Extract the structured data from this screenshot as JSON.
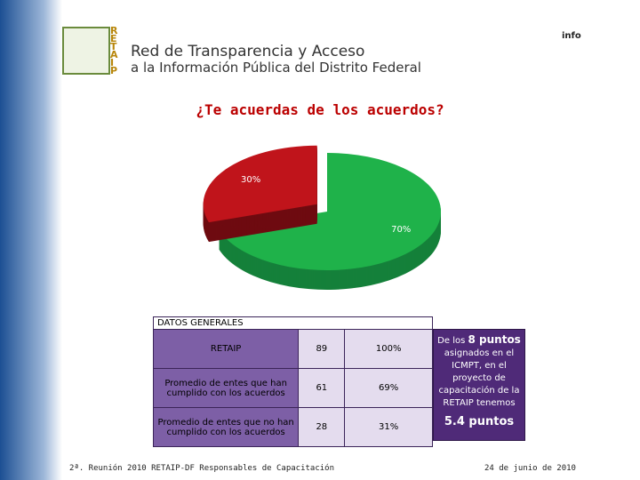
{
  "header": {
    "logo_letters": [
      "R",
      "E",
      "T",
      "A",
      "I",
      "P"
    ],
    "line1": "Red de Transparencia y Acceso",
    "line2": "a la Información Pública del Distrito Federal",
    "badge": "info"
  },
  "chart_data": {
    "type": "pie",
    "title": "¿Te acuerdas de los acuerdos?",
    "values": [
      70,
      30
    ],
    "value_labels": [
      "70%",
      "30%"
    ],
    "colors": [
      "#1fb24a",
      "#c0141b"
    ],
    "side_colors": [
      "#15803a",
      "#6e0b10"
    ]
  },
  "table": {
    "title": "DATOS GENERALES",
    "rows": [
      [
        "RETAIP",
        "89",
        "100%"
      ],
      [
        "Promedio de entes que han cumplido con los acuerdos",
        "61",
        "69%"
      ],
      [
        "Promedio de entes que no han cumplido con los acuerdos",
        "28",
        "31%"
      ]
    ]
  },
  "note": {
    "lead": "De los ",
    "highlight": "8 puntos",
    "body": "asignados en el ICMPT, en el proyecto de capacitación de la RETAIP tenemos",
    "result": "5.4 puntos"
  },
  "footer": {
    "left": "2ª. Reunión 2010 RETAIP-DF Responsables de Capacitación",
    "right": "24 de junio de 2010"
  }
}
